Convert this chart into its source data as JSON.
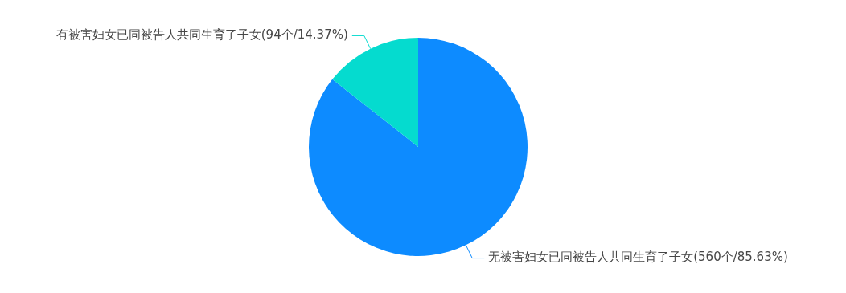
{
  "chart_data": {
    "type": "pie",
    "categories": [
      "无被害妇女已同被告人共同生育了子女",
      "有被害妇女已同被告人共同生育了子女"
    ],
    "values": [
      560,
      94
    ],
    "value_labels": [
      "(560个/85.63%)",
      "(94个/14.37%)"
    ],
    "colors": [
      "#0d8bff",
      "#05dbcf"
    ],
    "legend": false
  }
}
